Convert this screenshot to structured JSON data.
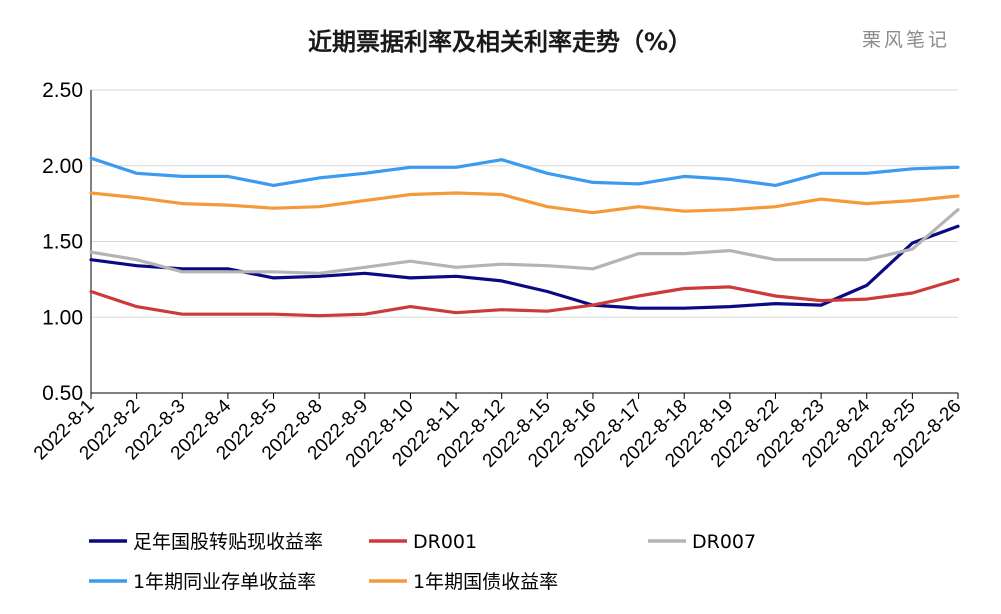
{
  "chart_data": {
    "type": "line",
    "title": "近期票据利率及相关利率走势（%）",
    "watermark": "栗风笔记",
    "xlabel": "",
    "ylabel": "",
    "ylim": [
      0.5,
      2.5
    ],
    "yticks": [
      "2.50",
      "2.00",
      "1.50",
      "1.00",
      "0.50"
    ],
    "ytick_values": [
      2.5,
      2.0,
      1.5,
      1.0,
      0.5
    ],
    "grid": true,
    "legend_position": "bottom",
    "categories": [
      "2022-8-1",
      "2022-8-2",
      "2022-8-3",
      "2022-8-4",
      "2022-8-5",
      "2022-8-8",
      "2022-8-9",
      "2022-8-10",
      "2022-8-11",
      "2022-8-12",
      "2022-8-15",
      "2022-8-16",
      "2022-8-17",
      "2022-8-18",
      "2022-8-19",
      "2022-8-22",
      "2022-8-23",
      "2022-8-24",
      "2022-8-25",
      "2022-8-26"
    ],
    "series": [
      {
        "name": "足年国股转贴现收益率",
        "color": "#0a0a82",
        "values": [
          1.38,
          1.34,
          1.32,
          1.32,
          1.26,
          1.27,
          1.29,
          1.26,
          1.27,
          1.24,
          1.17,
          1.08,
          1.06,
          1.06,
          1.07,
          1.09,
          1.08,
          1.21,
          1.49,
          1.6
        ]
      },
      {
        "name": "DR001",
        "color": "#cc3a3a",
        "values": [
          1.17,
          1.07,
          1.02,
          1.02,
          1.02,
          1.01,
          1.02,
          1.07,
          1.03,
          1.05,
          1.04,
          1.08,
          1.14,
          1.19,
          1.2,
          1.14,
          1.11,
          1.12,
          1.16,
          1.25
        ]
      },
      {
        "name": "DR007",
        "color": "#b4b4b4",
        "values": [
          1.43,
          1.38,
          1.3,
          1.3,
          1.3,
          1.29,
          1.33,
          1.37,
          1.33,
          1.35,
          1.34,
          1.32,
          1.42,
          1.42,
          1.44,
          1.38,
          1.38,
          1.38,
          1.45,
          1.71
        ]
      },
      {
        "name": "1年期同业存单收益率",
        "color": "#3b9bef",
        "values": [
          2.05,
          1.95,
          1.93,
          1.93,
          1.87,
          1.92,
          1.95,
          1.99,
          1.99,
          2.04,
          1.95,
          1.89,
          1.88,
          1.93,
          1.91,
          1.87,
          1.95,
          1.95,
          1.98,
          1.99
        ]
      },
      {
        "name": "1年期国债收益率",
        "color": "#f59a3a",
        "values": [
          1.82,
          1.79,
          1.75,
          1.74,
          1.72,
          1.73,
          1.77,
          1.81,
          1.82,
          1.81,
          1.73,
          1.69,
          1.73,
          1.7,
          1.71,
          1.73,
          1.78,
          1.75,
          1.77,
          1.8
        ]
      }
    ]
  }
}
